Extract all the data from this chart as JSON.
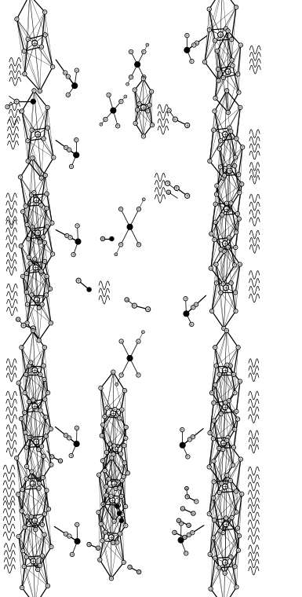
{
  "bg": "#ffffff",
  "fw": 3.85,
  "fh": 7.6,
  "dpi": 100,
  "lw_heavy": 0.9,
  "lw_light": 0.6,
  "lw_thin": 0.4,
  "r_C": 0.01,
  "r_N": 0.012,
  "r_Fe": 0.013,
  "r_P": 0.013,
  "r_O": 0.01,
  "r_halide": 0.01,
  "asp": 0.506
}
